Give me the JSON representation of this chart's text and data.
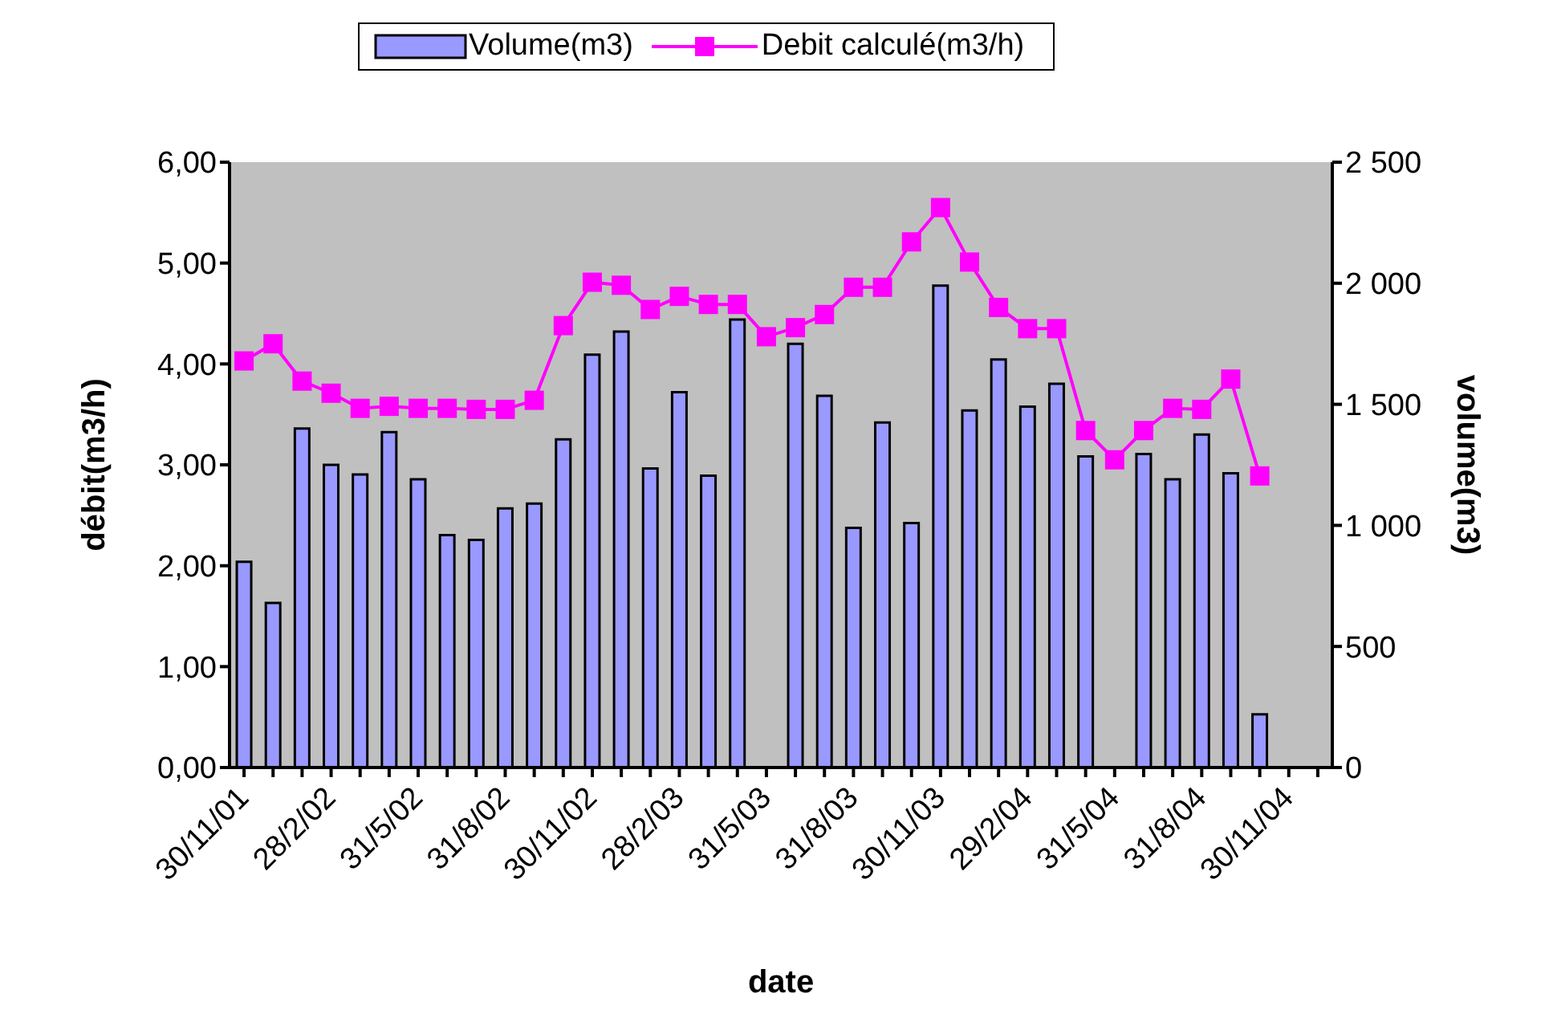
{
  "chart_data": {
    "type": "bar",
    "xlabel": "date",
    "ylabel": "débit(m3/h)",
    "y2label": "volume(m3)",
    "categories": [
      "30/11/01",
      null,
      null,
      "28/2/02",
      null,
      null,
      "31/5/02",
      null,
      null,
      "31/8/02",
      null,
      null,
      "30/11/02",
      null,
      null,
      "28/2/03",
      null,
      null,
      "31/5/03",
      null,
      null,
      "31/8/03",
      null,
      null,
      "30/11/03",
      null,
      null,
      "29/2/04",
      null,
      null,
      "31/5/04",
      null,
      null,
      "31/8/04",
      null,
      null,
      "30/11/04",
      null
    ],
    "series": [
      {
        "name": "Volume(m3)",
        "axis": "y2",
        "color": "#9999ff",
        "values": [
          850,
          680,
          1400,
          1250,
          1210,
          1385,
          1190,
          960,
          940,
          1070,
          1090,
          1355,
          1705,
          1800,
          1235,
          1550,
          1205,
          1850,
          null,
          1750,
          1535,
          990,
          1425,
          1010,
          1990,
          1475,
          1685,
          1490,
          1585,
          1285,
          null,
          1295,
          1190,
          1375,
          1215,
          220,
          null,
          null
        ]
      },
      {
        "name": "Debit calculé(m3/h)",
        "type": "line",
        "color": "#ff00ff",
        "marker": "square",
        "values": [
          4.03,
          4.2,
          3.83,
          3.71,
          3.56,
          3.58,
          3.56,
          3.56,
          3.55,
          3.55,
          3.64,
          4.38,
          4.81,
          4.78,
          4.54,
          4.67,
          4.59,
          4.59,
          4.27,
          4.36,
          4.49,
          4.76,
          4.76,
          5.21,
          5.55,
          5.01,
          4.56,
          4.35,
          4.35,
          3.34,
          3.05,
          3.34,
          3.56,
          3.55,
          3.85,
          2.89,
          null,
          null
        ]
      }
    ],
    "ylim": [
      0,
      6
    ],
    "yticks": [
      {
        "value": 0,
        "label": "0,00"
      },
      {
        "value": 1,
        "label": "1,00"
      },
      {
        "value": 2,
        "label": "2,00"
      },
      {
        "value": 3,
        "label": "3,00"
      },
      {
        "value": 4,
        "label": "4,00"
      },
      {
        "value": 5,
        "label": "5,00"
      },
      {
        "value": 6,
        "label": "6,00"
      }
    ],
    "y2lim": [
      0,
      2500
    ],
    "y2ticks": [
      0,
      500,
      {
        "value": 1000,
        "label": "1 000"
      },
      {
        "value": 1500,
        "label": "1 500"
      },
      {
        "value": 2000,
        "label": "2 000"
      },
      {
        "value": 2500,
        "label": "2 500"
      }
    ],
    "grid": false,
    "legend": "top"
  }
}
